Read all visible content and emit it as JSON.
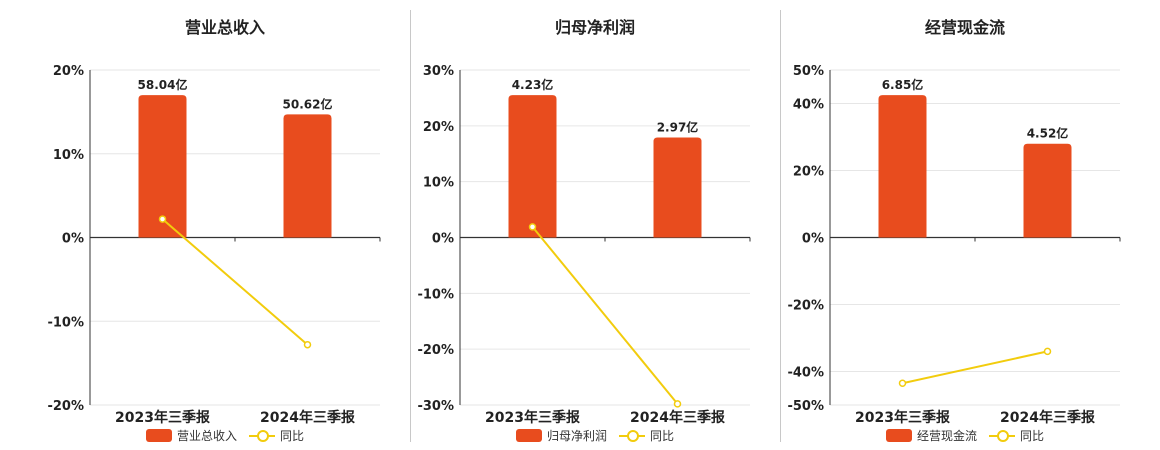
{
  "colors": {
    "bar": "#e84c1e",
    "line": "#f2cc0d",
    "grid": "#e6e6e6",
    "axis": "#333333",
    "text": "#222222"
  },
  "legend": {
    "yoy_label": "同比"
  },
  "chart_data": [
    {
      "type": "bar",
      "title": "营业总收入",
      "categories": [
        "2023年三季报",
        "2024年三季报"
      ],
      "bar_labels": [
        "58.04亿",
        "50.62亿"
      ],
      "series": [
        {
          "name": "营业总收入",
          "type": "bar",
          "values": [
            17.0,
            14.7
          ]
        },
        {
          "name": "同比",
          "type": "line",
          "values": [
            2.2,
            -12.8
          ]
        }
      ],
      "yticks": [
        20,
        10,
        0,
        -10,
        -20
      ],
      "ytick_labels": [
        "20%",
        "10%",
        "0%",
        "-10%",
        "-20%"
      ],
      "ylim": [
        -20,
        20
      ]
    },
    {
      "type": "bar",
      "title": "归母净利润",
      "categories": [
        "2023年三季报",
        "2024年三季报"
      ],
      "bar_labels": [
        "4.23亿",
        "2.97亿"
      ],
      "series": [
        {
          "name": "归母净利润",
          "type": "bar",
          "values": [
            25.5,
            17.9
          ]
        },
        {
          "name": "同比",
          "type": "line",
          "values": [
            1.9,
            -29.8
          ]
        }
      ],
      "yticks": [
        30,
        20,
        10,
        0,
        -10,
        -20,
        -30
      ],
      "ytick_labels": [
        "30%",
        "20%",
        "10%",
        "0%",
        "-10%",
        "-20%",
        "-30%"
      ],
      "ylim": [
        -30,
        30
      ]
    },
    {
      "type": "bar",
      "title": "经营现金流",
      "categories": [
        "2023年三季报",
        "2024年三季报"
      ],
      "bar_labels": [
        "6.85亿",
        "4.52亿"
      ],
      "series": [
        {
          "name": "经营现金流",
          "type": "bar",
          "values": [
            42.5,
            28.0
          ]
        },
        {
          "name": "同比",
          "type": "line",
          "values": [
            -43.5,
            -34.0
          ]
        }
      ],
      "yticks": [
        50,
        40,
        20,
        0,
        -20,
        -40,
        -50
      ],
      "ytick_labels": [
        "50%",
        "40%",
        "20%",
        "0%",
        "-20%",
        "-40%",
        "-50%"
      ],
      "ylim": [
        -50,
        50
      ]
    }
  ]
}
